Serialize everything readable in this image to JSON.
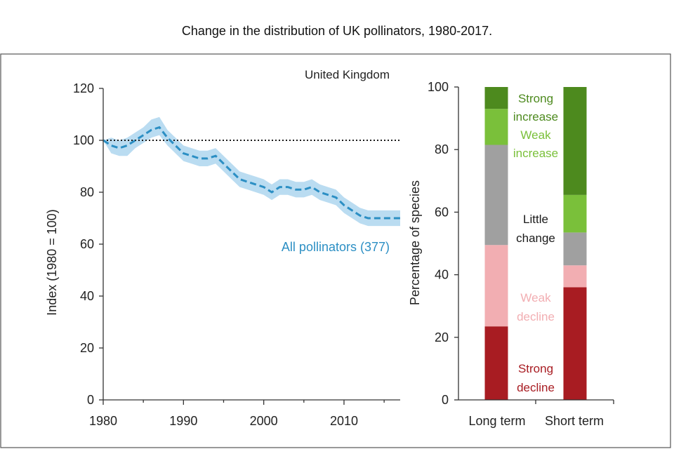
{
  "figure": {
    "title": "Change in the distribution of UK pollinators, 1980-2017."
  },
  "chart_data": [
    {
      "type": "line",
      "panel_label": "United Kingdom",
      "ylabel": "Index (1980 = 100)",
      "xlabel": "",
      "xlim": [
        1980,
        2017
      ],
      "ylim": [
        0,
        120
      ],
      "xticks": [
        1980,
        1990,
        2000,
        2010
      ],
      "yticks": [
        0,
        20,
        40,
        60,
        80,
        100,
        120
      ],
      "reference_line": {
        "y": 100,
        "style": "dotted"
      },
      "grid": false,
      "series": [
        {
          "name": "All pollinators (377)",
          "color": "#2c8fc4",
          "band_color": "#aed6ee",
          "line_style": "dashed",
          "x": [
            1980,
            1981,
            1982,
            1983,
            1984,
            1985,
            1986,
            1987,
            1988,
            1989,
            1990,
            1991,
            1992,
            1993,
            1994,
            1995,
            1996,
            1997,
            1998,
            1999,
            2000,
            2001,
            2002,
            2003,
            2004,
            2005,
            2006,
            2007,
            2008,
            2009,
            2010,
            2011,
            2012,
            2013,
            2014,
            2015,
            2016,
            2017
          ],
          "y": [
            100,
            98,
            97,
            98,
            100,
            102,
            104,
            105,
            101,
            98,
            95,
            94,
            93,
            93,
            94,
            91,
            88,
            85,
            84,
            83,
            82,
            80,
            82,
            82,
            81,
            81,
            82,
            80,
            79,
            78,
            75,
            73,
            71,
            70,
            70,
            70,
            70,
            70
          ],
          "lower": [
            100,
            95,
            94,
            94,
            97,
            99,
            101,
            102,
            98,
            95,
            92,
            91,
            90,
            90,
            91,
            88,
            85,
            82,
            81,
            80,
            79,
            77,
            79,
            79,
            78,
            78,
            79,
            77,
            76,
            75,
            72,
            70,
            68,
            67,
            67,
            67,
            67,
            67
          ],
          "upper": [
            100,
            101,
            100,
            101,
            103,
            105,
            108,
            109,
            104,
            101,
            98,
            97,
            96,
            96,
            97,
            94,
            91,
            88,
            87,
            86,
            85,
            83,
            85,
            85,
            84,
            84,
            85,
            83,
            82,
            81,
            78,
            76,
            74,
            73,
            73,
            73,
            73,
            73
          ]
        }
      ]
    },
    {
      "type": "bar",
      "stacked": true,
      "ylabel": "Percentage of species",
      "xlabel": "",
      "ylim": [
        0,
        100
      ],
      "yticks": [
        0,
        20,
        40,
        60,
        80,
        100
      ],
      "categories": [
        "Long term",
        "Short term"
      ],
      "series": [
        {
          "name": "Strong decline",
          "label_lines": [
            "Strong",
            "decline"
          ],
          "color": "#a81c22",
          "label_color": "#a81c22",
          "values": [
            23.5,
            36
          ]
        },
        {
          "name": "Weak decline",
          "label_lines": [
            "Weak",
            "decline"
          ],
          "color": "#f2aeb2",
          "label_color": "#f2aeb2",
          "values": [
            26,
            7
          ]
        },
        {
          "name": "Little change",
          "label_lines": [
            "Little",
            "change"
          ],
          "color": "#a0a0a0",
          "label_color": "#1a1a1a",
          "values": [
            32,
            10.5
          ]
        },
        {
          "name": "Weak increase",
          "label_lines": [
            "Weak",
            "increase"
          ],
          "color": "#7ac03a",
          "label_color": "#7ac03a",
          "values": [
            11.5,
            12
          ]
        },
        {
          "name": "Strong increase",
          "label_lines": [
            "Strong",
            "increase"
          ],
          "color": "#4d8a1e",
          "label_color": "#4d8a1e",
          "values": [
            7,
            34.5
          ]
        }
      ]
    }
  ]
}
